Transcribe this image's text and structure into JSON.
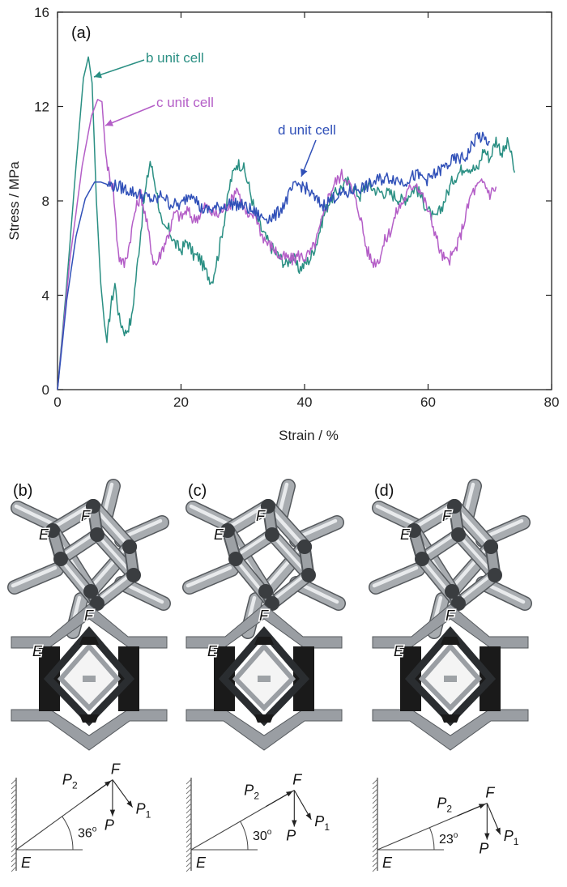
{
  "chart_data": {
    "type": "line",
    "panel_label": "(a)",
    "xlabel": "Strain / %",
    "ylabel": "Stress / MPa",
    "xlim": [
      0,
      80
    ],
    "ylim": [
      0,
      16
    ],
    "xticks": [
      "0",
      "20",
      "40",
      "60",
      "80"
    ],
    "yticks": [
      "0",
      "4",
      "8",
      "12",
      "16"
    ],
    "grid": false,
    "series": [
      {
        "name": "b unit cell",
        "color": "#2a8f83",
        "points": [
          [
            0,
            0
          ],
          [
            1.5,
            4.5
          ],
          [
            3,
            9.5
          ],
          [
            4.2,
            13.2
          ],
          [
            5,
            14.1
          ],
          [
            5.6,
            13.0
          ],
          [
            6.3,
            8.0
          ],
          [
            7,
            4.5
          ],
          [
            7.6,
            2.8
          ],
          [
            8,
            2.0
          ],
          [
            8.6,
            3.5
          ],
          [
            9.3,
            4.5
          ],
          [
            10,
            3.0
          ],
          [
            11,
            2.4
          ],
          [
            12,
            3.0
          ],
          [
            13,
            5.5
          ],
          [
            14,
            8.0
          ],
          [
            15,
            9.7
          ],
          [
            16,
            8.5
          ],
          [
            17,
            6.8
          ],
          [
            18,
            6.8
          ],
          [
            19,
            6.2
          ],
          [
            20,
            5.9
          ],
          [
            21,
            6.3
          ],
          [
            22,
            5.7
          ],
          [
            23,
            5.6
          ],
          [
            24,
            5.0
          ],
          [
            25,
            4.6
          ],
          [
            26,
            5.7
          ],
          [
            27,
            7.2
          ],
          [
            28,
            8.8
          ],
          [
            29,
            9.6
          ],
          [
            30,
            9.5
          ],
          [
            31,
            8.6
          ],
          [
            32,
            7.5
          ],
          [
            33,
            6.8
          ],
          [
            34,
            6.3
          ],
          [
            35,
            5.9
          ],
          [
            36,
            5.6
          ],
          [
            37,
            5.3
          ],
          [
            38,
            5.7
          ],
          [
            39,
            5.1
          ],
          [
            40,
            5.3
          ],
          [
            41,
            5.6
          ],
          [
            42,
            6.3
          ],
          [
            43,
            7.3
          ],
          [
            44,
            8.0
          ],
          [
            45,
            8.3
          ],
          [
            46,
            8.6
          ],
          [
            47,
            8.8
          ],
          [
            48,
            8.5
          ],
          [
            49,
            8.2
          ],
          [
            50,
            8.7
          ],
          [
            52,
            8.4
          ],
          [
            54,
            8.3
          ],
          [
            56,
            8.0
          ],
          [
            58,
            8.6
          ],
          [
            60,
            7.6
          ],
          [
            61,
            7.2
          ],
          [
            62,
            7.6
          ],
          [
            64,
            8.9
          ],
          [
            66,
            9.5
          ],
          [
            68,
            9.3
          ],
          [
            69,
            10.2
          ],
          [
            70,
            9.8
          ],
          [
            71,
            10.6
          ],
          [
            72,
            10.0
          ],
          [
            73,
            10.5
          ],
          [
            74,
            9.2
          ]
        ]
      },
      {
        "name": "c unit cell",
        "color": "#b45ec7",
        "points": [
          [
            0,
            0
          ],
          [
            2,
            5.5
          ],
          [
            4,
            9.5
          ],
          [
            5.5,
            11.6
          ],
          [
            6.5,
            12.3
          ],
          [
            7.2,
            12.2
          ],
          [
            7.8,
            10.0
          ],
          [
            8.4,
            9.0
          ],
          [
            9,
            8.6
          ],
          [
            9.6,
            6.5
          ],
          [
            10,
            5.6
          ],
          [
            10.8,
            5.3
          ],
          [
            11.5,
            6.0
          ],
          [
            12.5,
            7.5
          ],
          [
            13.5,
            8.3
          ],
          [
            14.5,
            7.0
          ],
          [
            15.5,
            5.5
          ],
          [
            16,
            5.3
          ],
          [
            17,
            6.0
          ],
          [
            18,
            6.6
          ],
          [
            19,
            7.5
          ],
          [
            20,
            7.3
          ],
          [
            21,
            7.6
          ],
          [
            22,
            7.2
          ],
          [
            23,
            7.4
          ],
          [
            24,
            7.8
          ],
          [
            25,
            7.5
          ],
          [
            26,
            7.4
          ],
          [
            27,
            7.7
          ],
          [
            28,
            7.9
          ],
          [
            29,
            8.6
          ],
          [
            30,
            7.8
          ],
          [
            31,
            7.2
          ],
          [
            32,
            7.5
          ],
          [
            33,
            6.6
          ],
          [
            34,
            6.2
          ],
          [
            35,
            6.0
          ],
          [
            36,
            5.6
          ],
          [
            37,
            5.6
          ],
          [
            38,
            5.5
          ],
          [
            39,
            5.7
          ],
          [
            40,
            5.6
          ],
          [
            41,
            5.8
          ],
          [
            42,
            6.4
          ],
          [
            43,
            7.3
          ],
          [
            44,
            8.3
          ],
          [
            45,
            8.8
          ],
          [
            46,
            9.1
          ],
          [
            47,
            8.9
          ],
          [
            48,
            8.2
          ],
          [
            49,
            7.4
          ],
          [
            50,
            6.0
          ],
          [
            51,
            5.4
          ],
          [
            52,
            5.5
          ],
          [
            53,
            6.3
          ],
          [
            54,
            6.8
          ],
          [
            55,
            7.6
          ],
          [
            56,
            8.0
          ],
          [
            57,
            8.5
          ],
          [
            58,
            8.8
          ],
          [
            59,
            8.3
          ],
          [
            60,
            7.6
          ],
          [
            61,
            6.8
          ],
          [
            62,
            5.8
          ],
          [
            63,
            5.4
          ],
          [
            64,
            5.7
          ],
          [
            65,
            6.3
          ],
          [
            66,
            7.3
          ],
          [
            67,
            8.3
          ],
          [
            68,
            8.6
          ],
          [
            69,
            8.8
          ],
          [
            70,
            8.3
          ],
          [
            71,
            8.6
          ]
        ]
      },
      {
        "name": "d unit cell",
        "color": "#3050b8",
        "points": [
          [
            0,
            0
          ],
          [
            1.5,
            3.8
          ],
          [
            3,
            6.5
          ],
          [
            4.5,
            8.1
          ],
          [
            6,
            8.8
          ],
          [
            7,
            8.8
          ],
          [
            8,
            8.7
          ],
          [
            10,
            8.6
          ],
          [
            12,
            8.4
          ],
          [
            14,
            8.2
          ],
          [
            16,
            8.0
          ],
          [
            17,
            8.3
          ],
          [
            18,
            7.9
          ],
          [
            20,
            7.8
          ],
          [
            21,
            8.2
          ],
          [
            22,
            8.4
          ],
          [
            23,
            7.7
          ],
          [
            24,
            7.6
          ],
          [
            26,
            7.7
          ],
          [
            28,
            7.9
          ],
          [
            30,
            7.8
          ],
          [
            32,
            7.5
          ],
          [
            33,
            7.3
          ],
          [
            35,
            7.3
          ],
          [
            36,
            7.6
          ],
          [
            37,
            8.0
          ],
          [
            38,
            8.5
          ],
          [
            39,
            8.7
          ],
          [
            40,
            8.6
          ],
          [
            41,
            8.3
          ],
          [
            42,
            8.0
          ],
          [
            43,
            7.8
          ],
          [
            44,
            8.0
          ],
          [
            45,
            8.2
          ],
          [
            46,
            8.3
          ],
          [
            47,
            8.3
          ],
          [
            48,
            8.5
          ],
          [
            50,
            8.6
          ],
          [
            52,
            8.9
          ],
          [
            54,
            9.0
          ],
          [
            56,
            8.8
          ],
          [
            58,
            9.1
          ],
          [
            60,
            8.9
          ],
          [
            62,
            9.3
          ],
          [
            63,
            9.5
          ],
          [
            64,
            9.7
          ],
          [
            65,
            9.8
          ],
          [
            66,
            9.8
          ],
          [
            67,
            10.3
          ],
          [
            68,
            10.8
          ],
          [
            69,
            10.6
          ],
          [
            70,
            10.5
          ]
        ]
      }
    ],
    "annotations": [
      {
        "text": "b unit cell",
        "series": "b unit cell"
      },
      {
        "text": "c unit cell",
        "series": "c unit cell"
      },
      {
        "text": "d unit cell",
        "series": "d unit cell"
      }
    ]
  },
  "panels": [
    {
      "label": "(b)",
      "angle_text": "36",
      "angle_deg": 36,
      "point_e": "E",
      "point_f": "F",
      "force_p": "P",
      "force_p1": "P",
      "force_p1_sub": "1",
      "force_p2": "P",
      "force_p2_sub": "2"
    },
    {
      "label": "(c)",
      "angle_text": "30",
      "angle_deg": 30,
      "point_e": "E",
      "point_f": "F",
      "force_p": "P",
      "force_p1": "P",
      "force_p1_sub": "1",
      "force_p2": "P",
      "force_p2_sub": "2"
    },
    {
      "label": "(d)",
      "angle_text": "23",
      "angle_deg": 23,
      "point_e": "E",
      "point_f": "F",
      "force_p": "P",
      "force_p1": "P",
      "force_p1_sub": "1",
      "force_p2": "P",
      "force_p2_sub": "2"
    }
  ],
  "degree_symbol": "o",
  "colors": {
    "frame": "#9a9ea3",
    "frame_dark": "#1a1a1a",
    "strut": "#a8acb0",
    "strut_light": "#e8eaec"
  }
}
